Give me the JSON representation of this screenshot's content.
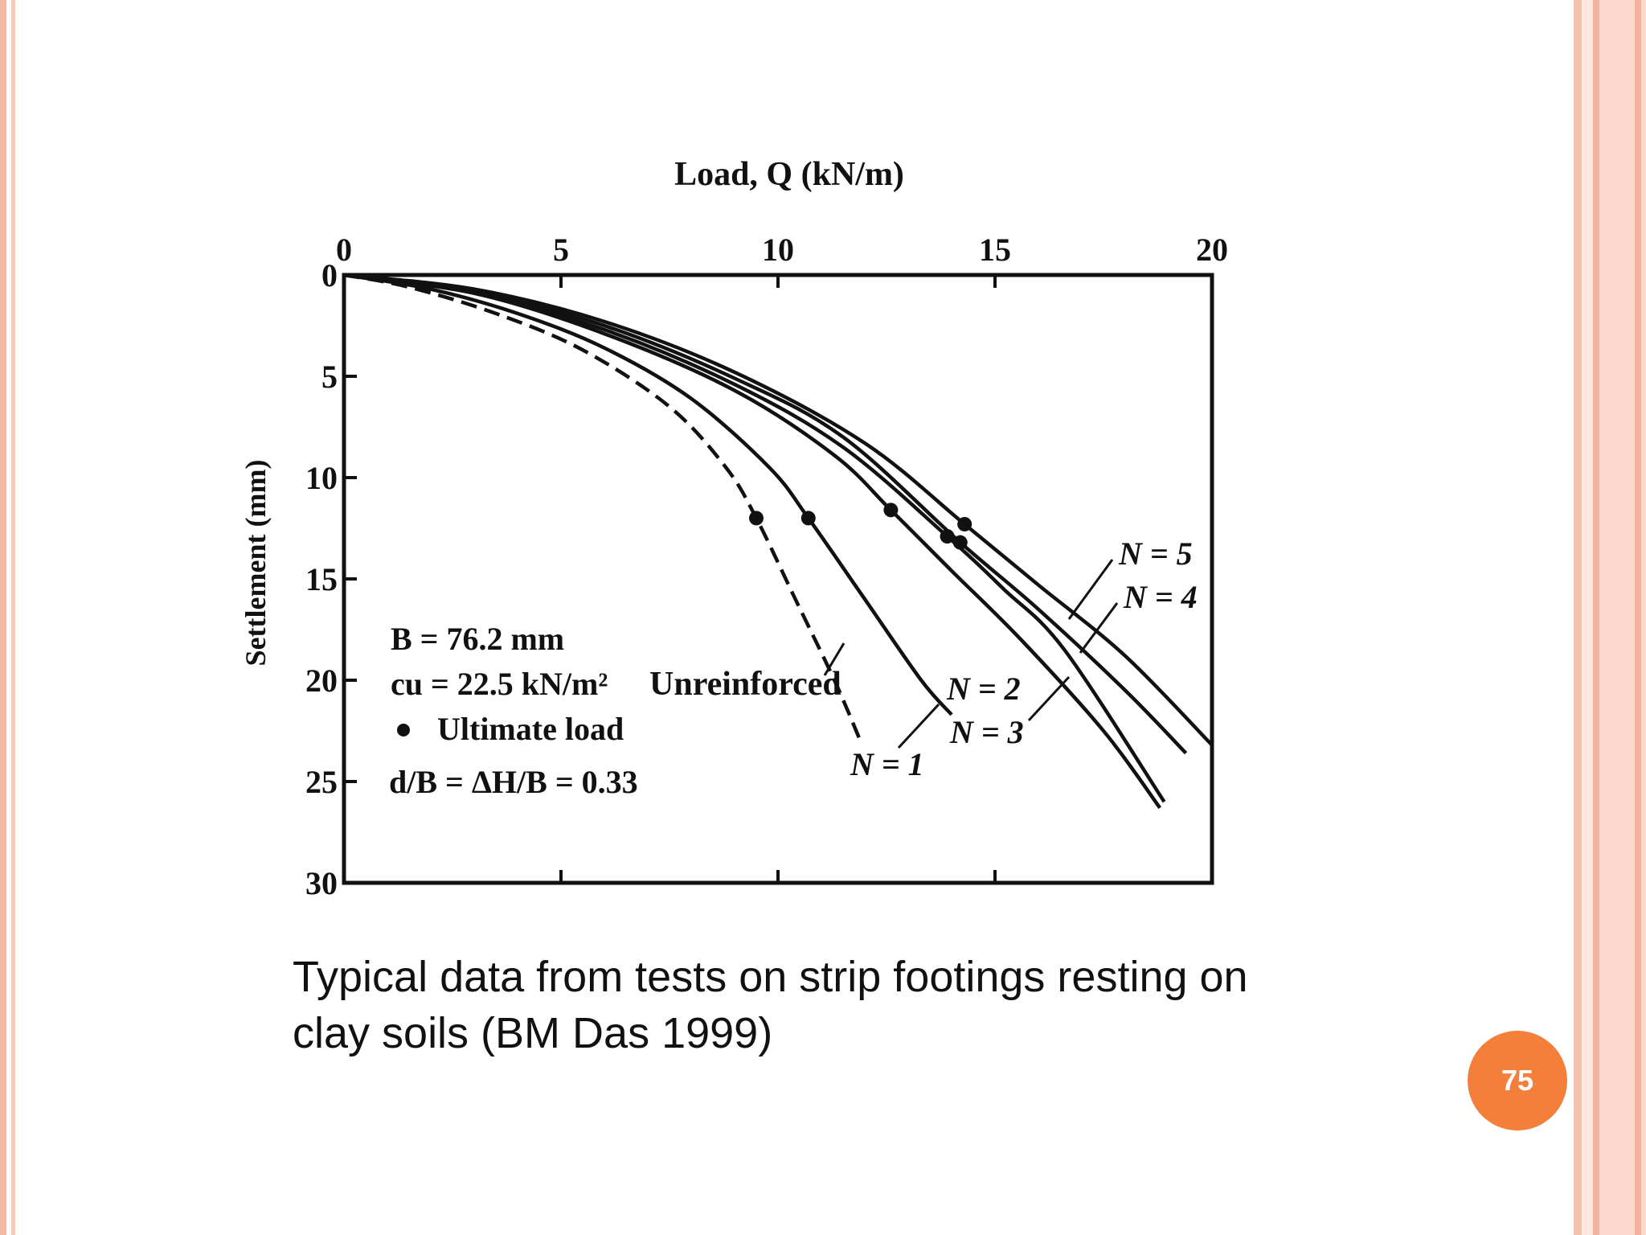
{
  "slide": {
    "caption_line1": "Typical data from tests on strip footings resting on",
    "caption_line2": "clay soils (BM Das 1999)",
    "page_number": "75",
    "accent_color": "#f47f3a"
  },
  "chart_data": {
    "type": "line",
    "title": "",
    "xlabel": "Load, Q (kN/m)",
    "ylabel": "Settlement (mm)",
    "xlim": [
      0,
      20
    ],
    "ylim": [
      0,
      30
    ],
    "x_ticks": [
      "0",
      "5",
      "10",
      "15",
      "20"
    ],
    "y_ticks": [
      "0",
      "5",
      "10",
      "15",
      "20",
      "25",
      "30"
    ],
    "y_inverted": true,
    "x_axis_position": "top",
    "grid": false,
    "annotations": {
      "b": "B = 76.2 mm",
      "cu": "cu = 22.5 kN/m²",
      "ultimate": "Ultimate load",
      "ratio": "d/B = ΔH/B = 0.33"
    },
    "series": [
      {
        "name": "Unreinforced",
        "style": "dashed",
        "points": [
          [
            0,
            0
          ],
          [
            1.5,
            0.6
          ],
          [
            3.5,
            1.9
          ],
          [
            5.5,
            3.7
          ],
          [
            7.5,
            6.5
          ],
          [
            8.8,
            9.5
          ],
          [
            9.5,
            12
          ],
          [
            10.4,
            16
          ],
          [
            11.3,
            20
          ],
          [
            11.9,
            23
          ]
        ],
        "ultimate": [
          9.5,
          12
        ]
      },
      {
        "name": "N = 1",
        "style": "solid",
        "points": [
          [
            0,
            0
          ],
          [
            2,
            0.7
          ],
          [
            4,
            1.9
          ],
          [
            6,
            3.6
          ],
          [
            8,
            6.1
          ],
          [
            9.8,
            9.5
          ],
          [
            10.7,
            12
          ],
          [
            12,
            16
          ],
          [
            13.3,
            20
          ],
          [
            14,
            21.7
          ]
        ],
        "ultimate": [
          10.7,
          12
        ]
      },
      {
        "name": "N = 2",
        "style": "solid",
        "points": [
          [
            0,
            0
          ],
          [
            3,
            0.9
          ],
          [
            6,
            2.9
          ],
          [
            9,
            5.7
          ],
          [
            11.3,
            8.9
          ],
          [
            12.6,
            11.6
          ],
          [
            14,
            14.6
          ],
          [
            15.6,
            18
          ],
          [
            17.5,
            22.5
          ],
          [
            18.8,
            26.3
          ]
        ],
        "ultimate": [
          12.6,
          11.6
        ]
      },
      {
        "name": "N = 3",
        "style": "solid",
        "points": [
          [
            0,
            0
          ],
          [
            3,
            0.9
          ],
          [
            6,
            2.7
          ],
          [
            9,
            5.4
          ],
          [
            11.5,
            8.5
          ],
          [
            13.9,
            12.9
          ],
          [
            15.2,
            15.5
          ],
          [
            16.6,
            18.5
          ],
          [
            18.9,
            26
          ]
        ],
        "ultimate": [
          13.9,
          12.9
        ]
      },
      {
        "name": "N = 4",
        "style": "solid",
        "points": [
          [
            0,
            0
          ],
          [
            3,
            0.8
          ],
          [
            6,
            2.5
          ],
          [
            9,
            5.1
          ],
          [
            11.5,
            8.0
          ],
          [
            14.2,
            13.2
          ],
          [
            16,
            16.5
          ],
          [
            18,
            20.5
          ],
          [
            19.4,
            23.6
          ]
        ],
        "ultimate": [
          14.2,
          13.2
        ]
      },
      {
        "name": "N = 5",
        "style": "solid",
        "points": [
          [
            0,
            0
          ],
          [
            3,
            0.7
          ],
          [
            6,
            2.3
          ],
          [
            9,
            4.8
          ],
          [
            12,
            8.3
          ],
          [
            14.3,
            12.3
          ],
          [
            16,
            15.3
          ],
          [
            18,
            18.8
          ],
          [
            20,
            23.2
          ]
        ],
        "ultimate": [
          14.3,
          12.3
        ]
      }
    ]
  }
}
